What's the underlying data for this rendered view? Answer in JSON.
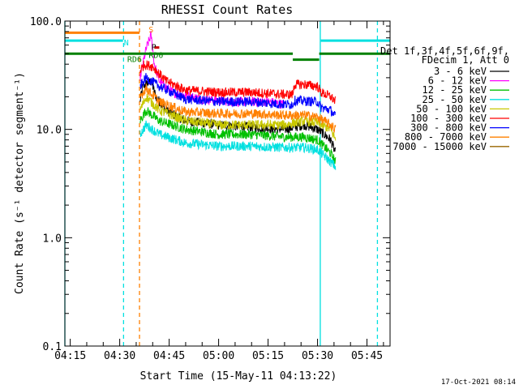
{
  "chart_data": {
    "type": "line",
    "title": "RHESSI Count Rates",
    "xlabel": "Start Time (15-May-11 04:13:22)",
    "ylabel": "Count Rate (s⁻¹ detector segment⁻¹)",
    "yscale": "log",
    "ylim": [
      0.1,
      100
    ],
    "yticks": [
      {
        "value": 0.1,
        "label": "0.1"
      },
      {
        "value": 1,
        "label": "1.0"
      },
      {
        "value": 10,
        "label": "10.0"
      },
      {
        "value": 100,
        "label": "100.0"
      }
    ],
    "xlim": [
      "04:13:22",
      "05:52:00"
    ],
    "xticks": [
      {
        "time": "04:15",
        "label": "04:15"
      },
      {
        "time": "04:30",
        "label": "04:30"
      },
      {
        "time": "04:45",
        "label": "04:45"
      },
      {
        "time": "05:00",
        "label": "05:00"
      },
      {
        "time": "05:15",
        "label": "05:15"
      },
      {
        "time": "05:30",
        "label": "05:30"
      },
      {
        "time": "05:45",
        "label": "05:45"
      }
    ],
    "legend_header": [
      "Det 1f,3f,4f,5f,6f,9f,",
      "FDecim 1, Att 0"
    ],
    "legend_position": "right",
    "series": [
      {
        "name": "3 - 6 keV",
        "color": "#000000",
        "points": [
          [
            "04:36:10",
            18
          ],
          [
            "04:37:00",
            25
          ],
          [
            "04:39:30",
            28
          ],
          [
            "04:41:00",
            20
          ],
          [
            "04:44:00",
            15
          ],
          [
            "04:50:00",
            12
          ],
          [
            "05:00:00",
            11
          ],
          [
            "05:10:00",
            10.5
          ],
          [
            "05:20:00",
            10
          ],
          [
            "05:26:00",
            11
          ],
          [
            "05:30:00",
            10
          ],
          [
            "05:32:00",
            9
          ],
          [
            "05:34:00",
            8
          ],
          [
            "05:35:30",
            6
          ]
        ]
      },
      {
        "name": "6 - 12 keV",
        "color": "#ff00ff",
        "points": [
          [
            "04:36:10",
            30
          ],
          [
            "04:38:00",
            55
          ],
          [
            "04:39:30",
            75
          ],
          [
            "04:40:30",
            40
          ],
          [
            "04:42:00",
            28
          ],
          [
            "04:46:00",
            22
          ],
          [
            "04:55:00",
            19
          ],
          [
            "05:05:00",
            18
          ],
          [
            "05:15:00",
            18
          ],
          [
            "05:20:00",
            17
          ]
        ]
      },
      {
        "name": "12 - 25 keV",
        "color": "#00c000",
        "points": [
          [
            "04:36:10",
            12
          ],
          [
            "04:38:00",
            15
          ],
          [
            "04:42:00",
            12
          ],
          [
            "04:50:00",
            10
          ],
          [
            "05:00:00",
            9
          ],
          [
            "05:10:00",
            9
          ],
          [
            "05:20:00",
            8.5
          ],
          [
            "05:26:00",
            8.5
          ],
          [
            "05:30:00",
            8
          ],
          [
            "05:34:00",
            6
          ],
          [
            "05:35:30",
            5
          ]
        ]
      },
      {
        "name": "25 - 50 keV",
        "color": "#00e0e0",
        "points": [
          [
            "04:36:10",
            9
          ],
          [
            "04:38:00",
            11
          ],
          [
            "04:42:00",
            9
          ],
          [
            "04:50:00",
            7.5
          ],
          [
            "05:00:00",
            7
          ],
          [
            "05:10:00",
            7
          ],
          [
            "05:20:00",
            6.8
          ],
          [
            "05:26:00",
            6.8
          ],
          [
            "05:30:00",
            6.5
          ],
          [
            "05:34:00",
            5
          ],
          [
            "05:35:30",
            4.5
          ]
        ]
      },
      {
        "name": "50 - 100 keV",
        "color": "#c8c800",
        "points": [
          [
            "04:36:10",
            15
          ],
          [
            "04:38:00",
            20
          ],
          [
            "04:42:00",
            15
          ],
          [
            "04:50:00",
            12
          ],
          [
            "05:00:00",
            11
          ],
          [
            "05:10:00",
            11
          ],
          [
            "05:20:00",
            11
          ],
          [
            "05:26:00",
            12
          ],
          [
            "05:30:00",
            11.5
          ],
          [
            "05:34:00",
            10
          ],
          [
            "05:35:30",
            8
          ]
        ]
      },
      {
        "name": "100 - 300 keV",
        "color": "#ff0000",
        "points": [
          [
            "04:36:10",
            35
          ],
          [
            "04:37:30",
            40
          ],
          [
            "04:40:00",
            38
          ],
          [
            "04:44:00",
            28
          ],
          [
            "04:50:00",
            23
          ],
          [
            "05:00:00",
            22
          ],
          [
            "05:10:00",
            22
          ],
          [
            "05:20:00",
            21
          ],
          [
            "05:22:30",
            21
          ],
          [
            "05:23:00",
            26
          ],
          [
            "05:26:00",
            26
          ],
          [
            "05:30:00",
            25
          ],
          [
            "05:31:00",
            22
          ],
          [
            "05:34:00",
            20
          ],
          [
            "05:35:30",
            18
          ]
        ]
      },
      {
        "name": "300 - 800 keV",
        "color": "#0000ff",
        "points": [
          [
            "04:36:10",
            25
          ],
          [
            "04:38:00",
            30
          ],
          [
            "04:42:00",
            25
          ],
          [
            "04:50:00",
            19
          ],
          [
            "05:00:00",
            18
          ],
          [
            "05:10:00",
            18
          ],
          [
            "05:20:00",
            17
          ],
          [
            "05:22:30",
            17
          ],
          [
            "05:23:00",
            18.5
          ],
          [
            "05:30:00",
            18
          ],
          [
            "05:31:00",
            16
          ],
          [
            "05:34:00",
            15
          ],
          [
            "05:35:30",
            13
          ]
        ]
      },
      {
        "name": "800 - 7000 keV",
        "color": "#ff8000",
        "points": [
          [
            "04:36:10",
            20
          ],
          [
            "04:38:00",
            24
          ],
          [
            "04:42:00",
            18
          ],
          [
            "04:50:00",
            14.5
          ],
          [
            "05:00:00",
            14
          ],
          [
            "05:10:00",
            14
          ],
          [
            "05:20:00",
            13.5
          ],
          [
            "05:26:00",
            13.5
          ],
          [
            "05:30:00",
            13
          ],
          [
            "05:34:00",
            11
          ],
          [
            "05:35:30",
            10
          ]
        ]
      },
      {
        "name": "7000 - 15000 keV",
        "color": "#996600",
        "points": []
      }
    ],
    "state_bars": [
      {
        "color": "#ff8000",
        "y": 78,
        "from": "04:13:22",
        "to": "04:36:00",
        "label": "S",
        "label_at": "04:39:30",
        "label_y": 84
      },
      {
        "color": "#00e0e0",
        "y": 66,
        "from": "04:13:22",
        "to": "04:31:00",
        "label": "N",
        "label_at": "04:32:00",
        "label_y": 64
      },
      {
        "color": "#00e0e0",
        "y": 66,
        "from": "05:31:00",
        "to": "05:52:00",
        "label": "",
        "label_at": "",
        "label_y": 0
      },
      {
        "color": "#008000",
        "y": 50,
        "from": "04:13:22",
        "to": "05:22:30",
        "label": "RD6",
        "label_at": "04:34:30",
        "label_y": 45
      },
      {
        "color": "#008000",
        "y": 44,
        "from": "05:22:30",
        "to": "05:30:30",
        "label": "",
        "label_at": "",
        "label_y": 0
      },
      {
        "color": "#008000",
        "y": 50,
        "from": "05:30:30",
        "to": "05:52:00",
        "label": "",
        "label_at": "",
        "label_y": 0
      },
      {
        "color": "#cc0000",
        "y": 57,
        "from": "04:40:30",
        "to": "04:42:00",
        "label": "",
        "label_at": "",
        "label_y": 0
      }
    ],
    "text_labels": [
      {
        "text": "P",
        "color": "#000000",
        "at": "04:40:20",
        "y": 58
      },
      {
        "text": "RD0",
        "color": "#008000",
        "at": "04:41:00",
        "y": 49
      }
    ],
    "vertical_lines": [
      {
        "at": "04:13:22",
        "color": "#00e0e0",
        "style": "solid"
      },
      {
        "at": "04:31:10",
        "color": "#00e0e0",
        "style": "dashed"
      },
      {
        "at": "04:36:00",
        "color": "#ff8000",
        "style": "dashed"
      },
      {
        "at": "05:30:50",
        "color": "#00e0e0",
        "style": "solid"
      },
      {
        "at": "05:48:10",
        "color": "#00e0e0",
        "style": "dashed"
      }
    ],
    "grid": false,
    "footer_text": "17-Oct-2021 08:14"
  }
}
